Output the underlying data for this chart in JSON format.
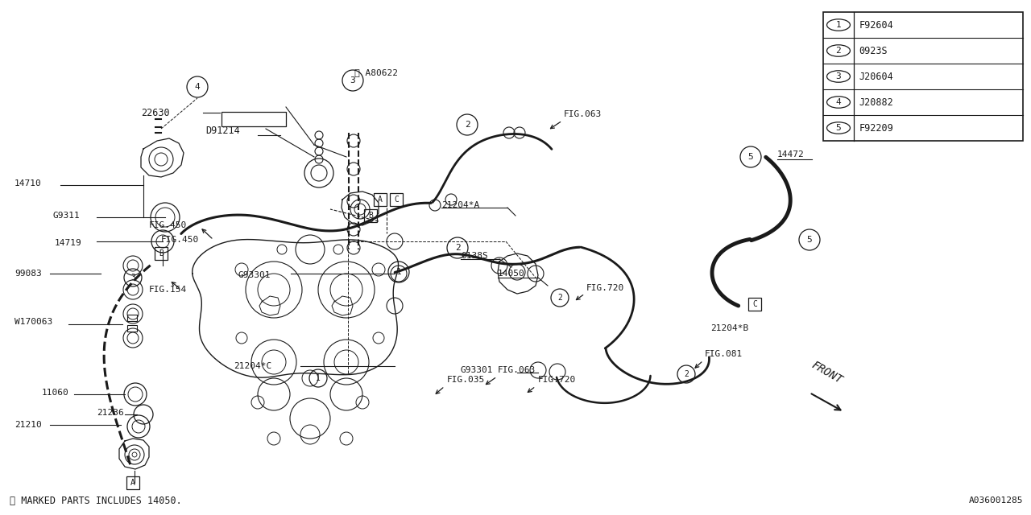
{
  "bg_color": "#ffffff",
  "line_color": "#1a1a1a",
  "fig_width": 12.8,
  "fig_height": 6.4,
  "legend_items": [
    {
      "num": "1",
      "code": "F92604"
    },
    {
      "num": "2",
      "code": "0923S"
    },
    {
      "num": "3",
      "code": "J20604"
    },
    {
      "num": "4",
      "code": "J20882"
    },
    {
      "num": "5",
      "code": "F92209"
    }
  ],
  "footnote": "※ MARKED PARTS INCLUDES 14050.",
  "diagram_id": "A036001285",
  "front_text": "FRONT"
}
